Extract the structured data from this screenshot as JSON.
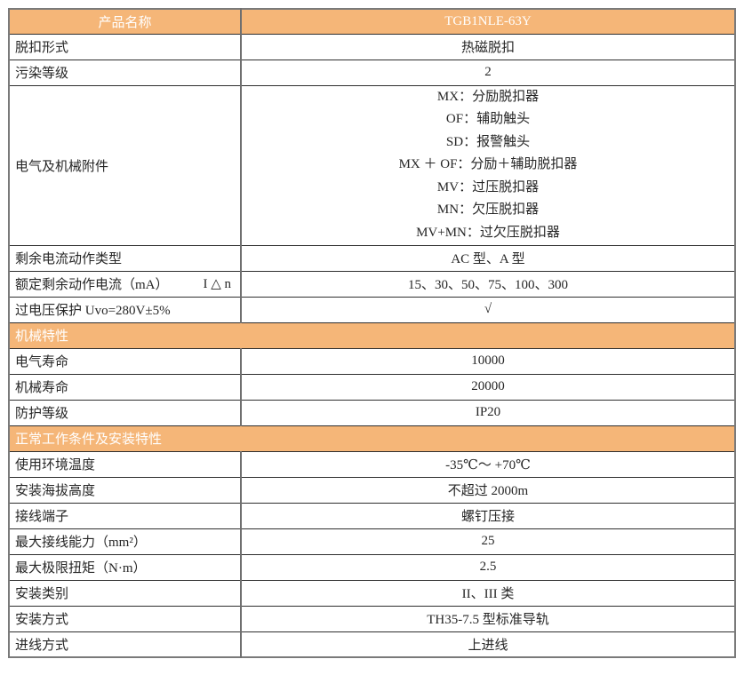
{
  "colors": {
    "accent": "#f5b678",
    "accent_text": "#ffffff",
    "grid_line": "#2e2e2e",
    "outer_border": "#7a7a7a",
    "text": "#262626"
  },
  "table": {
    "header": {
      "label": "产品名称",
      "value": "TGB1NLE-63Y"
    },
    "rows": [
      {
        "type": "row",
        "label": "脱扣形式",
        "value": "热磁脱扣"
      },
      {
        "type": "row",
        "label": "污染等级",
        "value": "2"
      },
      {
        "type": "row",
        "label": "电气及机械附件",
        "value_lines": [
          "MX：分励脱扣器",
          "OF：辅助触头",
          "SD：报警触头",
          "MX ＋ OF：分励＋辅助脱扣器",
          "MV：过压脱扣器",
          "MN：欠压脱扣器",
          "MV+MN：过欠压脱扣器"
        ]
      },
      {
        "type": "row",
        "label": "剩余电流动作类型",
        "value": "AC 型、A 型"
      },
      {
        "type": "row",
        "label": "额定剩余动作电流（mA）",
        "label_suffix": "I △ n",
        "value": "15、30、50、75、100、300"
      },
      {
        "type": "row",
        "label": "过电压保护 Uvo=280V±5%",
        "value": "√"
      },
      {
        "type": "section",
        "label": "机械特性"
      },
      {
        "type": "row",
        "label": "电气寿命",
        "value": "10000"
      },
      {
        "type": "row",
        "label": "机械寿命",
        "value": "20000"
      },
      {
        "type": "row",
        "label": "防护等级",
        "value": "IP20"
      },
      {
        "type": "section",
        "label": "正常工作条件及安装特性"
      },
      {
        "type": "row",
        "label": "使用环境温度",
        "value": "-35℃～ +70℃"
      },
      {
        "type": "row",
        "label": "安装海拔高度",
        "value": "不超过 2000m"
      },
      {
        "type": "row",
        "label": "接线端子",
        "value": "螺钉压接"
      },
      {
        "type": "row",
        "label": "最大接线能力（mm²）",
        "value": "25"
      },
      {
        "type": "row",
        "label": "最大极限扭矩（N·m）",
        "value": "2.5"
      },
      {
        "type": "row",
        "label": "安装类别",
        "value": "II、III 类"
      },
      {
        "type": "row",
        "label": "安装方式",
        "value": "TH35-7.5 型标准导轨"
      },
      {
        "type": "row",
        "label": "进线方式",
        "value": "上进线"
      }
    ]
  }
}
